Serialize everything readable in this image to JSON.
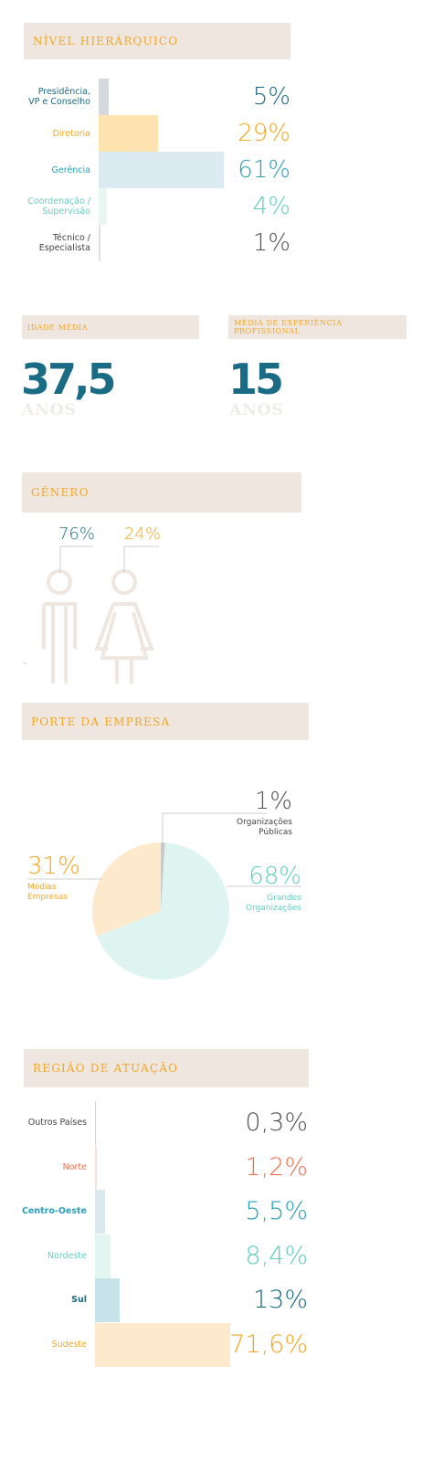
{
  "hierarquia": {
    "title": "NÍVEL HIERÁRQUICO",
    "chart_data": {
      "type": "bar",
      "orientation": "horizontal",
      "categories": [
        "Presidência,\nVP e Conselho",
        "Diretoria",
        "Gerência",
        "Coordenação /\nSupervisão",
        "Técnico /\nEspecialista"
      ],
      "values": [
        5,
        29,
        61,
        4,
        1
      ],
      "value_labels": [
        "5%",
        "29%",
        "61%",
        "4%",
        "1%"
      ],
      "colors": [
        "#d5d9de",
        "#fde3b0",
        "#dcebf1",
        "#e9f7f4",
        "#e1e1e1"
      ],
      "text_colors": [
        "#1a6b84",
        "#f5a623",
        "#2aa0b8",
        "#5fcfbf",
        "#555555"
      ]
    }
  },
  "idade": {
    "title": "IDADE MÉDIA",
    "value": "37,5",
    "unit": "ANOS"
  },
  "experiencia": {
    "title": "MÉDIA DE EXPERIÊNCIA PROFISSIONAL",
    "value": "15",
    "unit": "ANOS"
  },
  "genero": {
    "title": "GÊNERO",
    "chart_data": {
      "type": "bar",
      "categories": [
        "",
        ""
      ],
      "values": [
        76,
        24
      ],
      "value_labels": [
        "76%",
        "24%"
      ],
      "colors": [
        "#1a6b84",
        "#f5a623"
      ]
    }
  },
  "porte": {
    "title": "PORTE DA EMPRESA",
    "chart_data": {
      "type": "pie",
      "categories": [
        "Organizações\nPúblicas",
        "Grandes\nOrganizações",
        "Médias\nEmpresas"
      ],
      "values": [
        1,
        68,
        31
      ],
      "value_labels": [
        "1%",
        "68%",
        "31%"
      ],
      "colors": [
        "#c9c9c9",
        "#def4f0",
        "#fde9cc"
      ],
      "text_colors": [
        "#555555",
        "#5fcfbf",
        "#f5a623"
      ]
    }
  },
  "regiao": {
    "title": "REGIÃO DE ATUAÇÃO",
    "chart_data": {
      "type": "bar",
      "orientation": "horizontal",
      "categories": [
        "Outros Países",
        "Norte",
        "Centro-Oeste",
        "Nordeste",
        "Sul",
        "Sudeste"
      ],
      "values": [
        0.3,
        1.2,
        5.5,
        8.4,
        13,
        71.6
      ],
      "value_labels": [
        "0,3%",
        "1,2%",
        "5,5%",
        "8,4%",
        "13%",
        "71,6%"
      ],
      "colors": [
        "#d5d5d5",
        "#fbe0d4",
        "#dbe8ee",
        "#e3f5f1",
        "#c8e2e9",
        "#fde9cc"
      ],
      "text_colors": [
        "#555555",
        "#f07050",
        "#2aa0b8",
        "#5fcfbf",
        "#1a6b84",
        "#f5a623"
      ]
    }
  }
}
